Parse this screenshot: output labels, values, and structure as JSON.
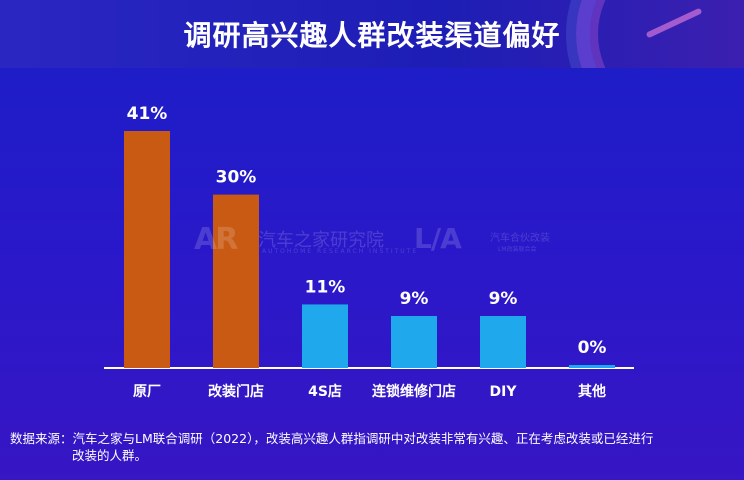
{
  "header": {
    "title": "调研高兴趣人群改装渠道偏好"
  },
  "watermarks": {
    "left_logo": "AR",
    "left_text": "汽车之家研究院",
    "left_sub": "AUTOHOME RESEARCH INSTITUTE",
    "right_logo": "L/A",
    "right_text": "汽车合伙改装",
    "right_sub": "LM改装联合会"
  },
  "source": {
    "label": "数据来源：",
    "line1": "汽车之家与LM联合调研（2022），改装高兴趣人群指调研中对改装非常有兴趣、正在考虑改装或已经进行",
    "line2": "改装的人群。"
  },
  "chart_data": {
    "type": "bar",
    "title": "调研高兴趣人群改装渠道偏好",
    "categories": [
      "原厂",
      "改装门店",
      "4S店",
      "连锁维修门店",
      "DIY",
      "其他"
    ],
    "values": [
      41,
      30,
      11,
      9,
      9,
      0
    ],
    "value_labels": [
      "41%",
      "30%",
      "11%",
      "9%",
      "9%",
      "0%"
    ],
    "unit": "%",
    "ylim": [
      0,
      41
    ],
    "grid": false,
    "legend": "none",
    "colors": [
      "#c85a14",
      "#c85a14",
      "#1fa8ec",
      "#1fa8ec",
      "#1fa8ec",
      "#1fa8ec"
    ],
    "axis_color": "#ffffff"
  }
}
